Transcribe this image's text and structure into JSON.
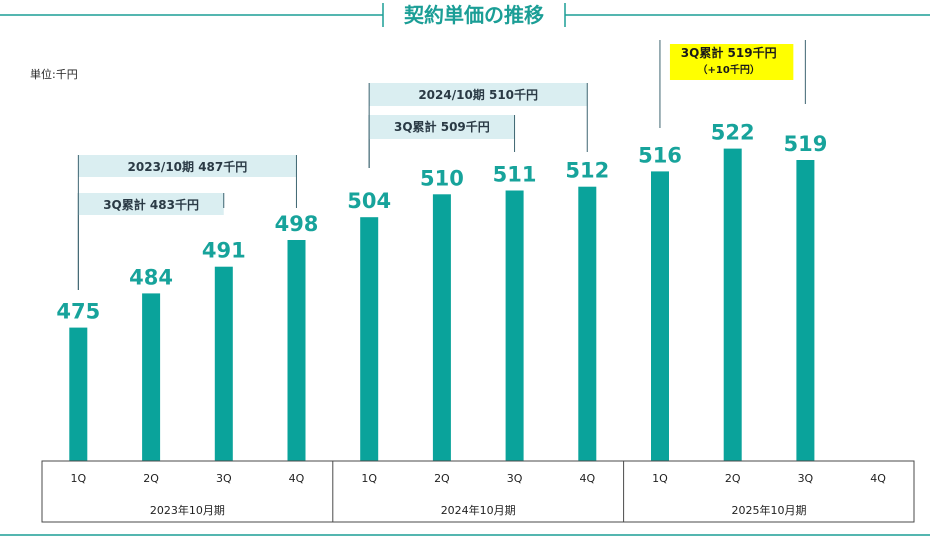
{
  "chart_data": {
    "type": "bar",
    "title": "契約単価の推移",
    "unit_label": "単位:千円",
    "categories": [
      "1Q",
      "2Q",
      "3Q",
      "4Q",
      "1Q",
      "2Q",
      "3Q",
      "4Q",
      "1Q",
      "2Q",
      "3Q",
      "4Q"
    ],
    "periods": [
      {
        "label": "2023年10月期",
        "quarters": [
          "1Q",
          "2Q",
          "3Q",
          "4Q"
        ]
      },
      {
        "label": "2024年10月期",
        "quarters": [
          "1Q",
          "2Q",
          "3Q",
          "4Q"
        ]
      },
      {
        "label": "2025年10月期",
        "quarters": [
          "1Q",
          "2Q",
          "3Q",
          "4Q"
        ]
      }
    ],
    "values": [
      475,
      484,
      491,
      498,
      504,
      510,
      511,
      512,
      516,
      522,
      519,
      null
    ],
    "ylim": [
      440,
      540
    ],
    "grid": false,
    "colors": {
      "bar": "#0aa39b",
      "title": "#1b9e96",
      "annotation_bg": "#daeef1",
      "highlight_bg": "#ffff00",
      "rule": "#1b9e96"
    },
    "annotations": [
      {
        "text": "2023/10期 487千円",
        "from_index": 0,
        "to_index": 3
      },
      {
        "text": "3Q累計 483千円",
        "from_index": 0,
        "to_index": 2
      },
      {
        "text": "2024/10期 510千円",
        "from_index": 4,
        "to_index": 7
      },
      {
        "text": "3Q累計 509千円",
        "from_index": 4,
        "to_index": 6
      },
      {
        "text": "3Q累計 519千円",
        "sub": "（+10千円）",
        "from_index": 8,
        "to_index": 10,
        "highlight": true
      }
    ]
  }
}
